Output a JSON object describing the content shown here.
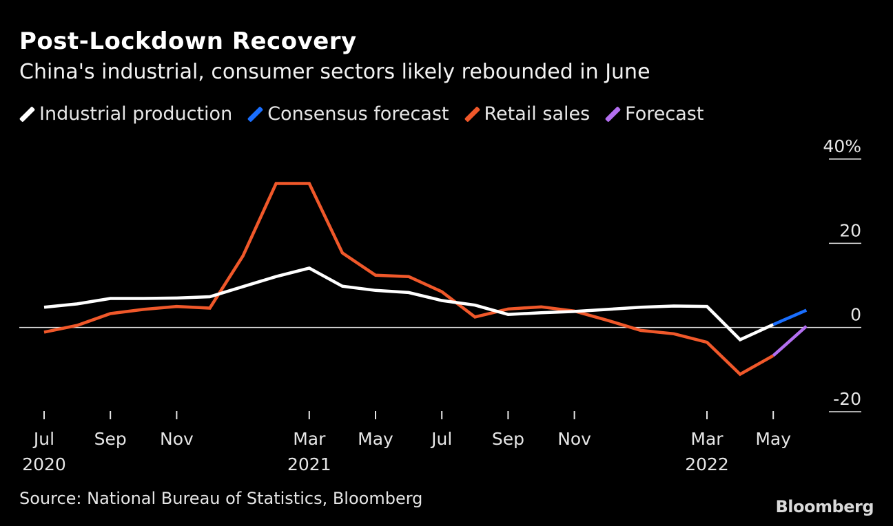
{
  "header": {
    "title": "Post-Lockdown Recovery",
    "subtitle": "China's industrial, consumer sectors likely rebounded in June"
  },
  "legend": {
    "items": [
      {
        "label": "Industrial production",
        "color": "#ffffff"
      },
      {
        "label": "Consensus forecast",
        "color": "#1a6fff"
      },
      {
        "label": "Retail sales",
        "color": "#f0582a"
      },
      {
        "label": "Forecast",
        "color": "#b36ff0"
      }
    ]
  },
  "footer": {
    "source": "Source: National Bureau of Statistics, Bloomberg",
    "brand": "Bloomberg"
  },
  "chart_data": {
    "type": "line",
    "title": "Post-Lockdown Recovery",
    "subtitle": "China's industrial, consumer sectors likely rebounded in June",
    "x": [
      "2020-07",
      "2020-08",
      "2020-09",
      "2020-10",
      "2020-11",
      "2020-12",
      "2021-01",
      "2021-02",
      "2021-03",
      "2021-04",
      "2021-05",
      "2021-06",
      "2021-07",
      "2021-08",
      "2021-09",
      "2021-10",
      "2021-11",
      "2021-12",
      "2022-01",
      "2022-02",
      "2022-03",
      "2022-04",
      "2022-05",
      "2022-06"
    ],
    "ylim": [
      -20,
      40
    ],
    "yticks": [
      {
        "value": 40,
        "label": "40%"
      },
      {
        "value": 20,
        "label": "20"
      },
      {
        "value": 0,
        "label": "0"
      },
      {
        "value": -20,
        "label": "-20"
      }
    ],
    "xticks": [
      {
        "x": "2020-07",
        "label": "Jul",
        "year": "2020"
      },
      {
        "x": "2020-09",
        "label": "Sep",
        "year": ""
      },
      {
        "x": "2020-11",
        "label": "Nov",
        "year": ""
      },
      {
        "x": "2021-03",
        "label": "Mar",
        "year": "2021"
      },
      {
        "x": "2021-05",
        "label": "May",
        "year": ""
      },
      {
        "x": "2021-07",
        "label": "Jul",
        "year": ""
      },
      {
        "x": "2021-09",
        "label": "Sep",
        "year": ""
      },
      {
        "x": "2021-11",
        "label": "Nov",
        "year": ""
      },
      {
        "x": "2022-03",
        "label": "Mar",
        "year": "2022"
      },
      {
        "x": "2022-05",
        "label": "May",
        "year": ""
      }
    ],
    "series": [
      {
        "name": "Industrial production",
        "color": "#ffffff",
        "x": [
          "2020-07",
          "2020-08",
          "2020-09",
          "2020-10",
          "2020-11",
          "2020-12",
          "2021-01",
          "2021-02",
          "2021-03",
          "2021-04",
          "2021-05",
          "2021-06",
          "2021-07",
          "2021-08",
          "2021-09",
          "2021-10",
          "2021-11",
          "2021-12",
          "2022-01",
          "2022-02",
          "2022-03",
          "2022-04",
          "2022-05"
        ],
        "values": [
          4.8,
          5.6,
          6.9,
          6.9,
          7.0,
          7.3,
          9.7,
          12.1,
          14.1,
          9.8,
          8.8,
          8.3,
          6.4,
          5.3,
          3.1,
          3.5,
          3.8,
          4.3,
          4.8,
          5.1,
          5.0,
          -2.9,
          0.7
        ]
      },
      {
        "name": "Consensus forecast",
        "color": "#1a6fff",
        "x": [
          "2022-05",
          "2022-06"
        ],
        "values": [
          0.7,
          4.1
        ]
      },
      {
        "name": "Retail sales",
        "color": "#f0582a",
        "x": [
          "2020-07",
          "2020-08",
          "2020-09",
          "2020-10",
          "2020-11",
          "2020-12",
          "2021-01",
          "2021-02",
          "2021-03",
          "2021-04",
          "2021-05",
          "2021-06",
          "2021-07",
          "2021-08",
          "2021-09",
          "2021-10",
          "2021-11",
          "2021-12",
          "2022-01",
          "2022-02",
          "2022-03",
          "2022-04",
          "2022-05"
        ],
        "values": [
          -1.1,
          0.5,
          3.3,
          4.3,
          5.0,
          4.6,
          17.0,
          34.2,
          34.2,
          17.7,
          12.4,
          12.1,
          8.5,
          2.5,
          4.4,
          4.9,
          3.9,
          1.7,
          -0.7,
          -1.5,
          -3.5,
          -11.1,
          -6.7
        ]
      },
      {
        "name": "Forecast",
        "color": "#b36ff0",
        "x": [
          "2022-05",
          "2022-06"
        ],
        "values": [
          -6.7,
          0.3
        ]
      }
    ],
    "gridlines": true,
    "legend_position": "top-left"
  }
}
